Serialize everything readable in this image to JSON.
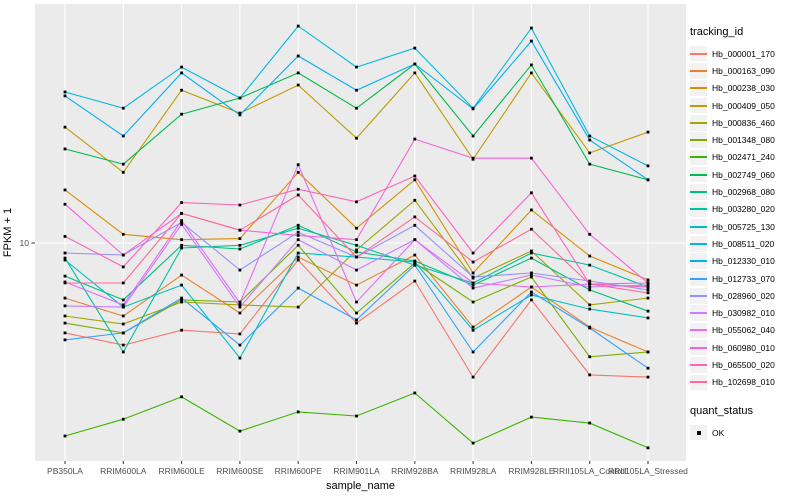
{
  "figure": {
    "legend_title": "tracking_id",
    "quant_legend_title": "quant_status",
    "quant_legend_items": [
      "OK"
    ]
  },
  "chart_data": {
    "type": "line",
    "title": "",
    "xlabel": "sample_name",
    "ylabel": "FPKM + 1",
    "x_type": "categorical",
    "y_scale": "log10",
    "y_tick_labels": [
      "10"
    ],
    "y_tick_values": [
      10
    ],
    "ylim": [
      1.45,
      80
    ],
    "grid": "major-only",
    "legend_position": "right",
    "panel_background": "#EBEBEB",
    "gridline_color": "#FFFFFF",
    "point_marker": {
      "shape": "square",
      "color": "#000000",
      "meaning": "quant_status OK"
    },
    "categories": [
      "PB350LA",
      "RRIM600LA",
      "RRIM600LE",
      "RRIM600SE",
      "RRIM600PE",
      "RRIM901LA",
      "RRIM928BA",
      "RRIM928LA",
      "RRIM928LE",
      "RRII105LA_Control",
      "RRII105LA_Stressed"
    ],
    "series": [
      {
        "name": "Hb_000001_170",
        "color": "#F8766D",
        "values": [
          4.51,
          4.05,
          4.62,
          4.47,
          8.6,
          4.92,
          7.14,
          3.05,
          6.04,
          3.11,
          3.05
        ]
      },
      {
        "name": "Hb_000163_090",
        "color": "#EA8331",
        "values": [
          6.14,
          5.24,
          7.53,
          5.38,
          8.83,
          6.89,
          8.99,
          4.75,
          6.77,
          4.75,
          3.81
        ]
      },
      {
        "name": "Hb_000238_030",
        "color": "#D89000",
        "values": [
          16.0,
          10.8,
          10.3,
          10.4,
          18.7,
          11.4,
          17.5,
          7.67,
          13.4,
          8.91,
          7.21
        ]
      },
      {
        "name": "Hb_000409_050",
        "color": "#C09B00",
        "values": [
          27.9,
          18.7,
          38.7,
          31.6,
          40.5,
          25.3,
          45.1,
          21.0,
          45.1,
          22.2,
          26.7
        ]
      },
      {
        "name": "Hb_000836_460",
        "color": "#A3A500",
        "values": [
          5.24,
          4.88,
          5.93,
          5.78,
          5.67,
          9.4,
          14.6,
          7.33,
          9.32,
          5.78,
          6.14
        ]
      },
      {
        "name": "Hb_001348_080",
        "color": "#7CAE00",
        "values": [
          4.92,
          4.51,
          6.04,
          5.93,
          9.8,
          5.38,
          8.38,
          5.93,
          7.4,
          3.65,
          3.81
        ]
      },
      {
        "name": "Hb_002471_240",
        "color": "#39B600",
        "values": [
          1.81,
          2.1,
          2.56,
          1.89,
          2.24,
          2.16,
          2.65,
          1.7,
          2.14,
          2.03,
          1.63
        ]
      },
      {
        "name": "Hb_002749_060",
        "color": "#00BB4E",
        "values": [
          23.0,
          20.1,
          31.3,
          36.1,
          45.1,
          33.0,
          48.8,
          25.8,
          48.4,
          20.1,
          17.5
        ]
      },
      {
        "name": "Hb_002968_080",
        "color": "#00BF7D",
        "values": [
          7.46,
          6.04,
          9.8,
          9.48,
          11.7,
          9.24,
          8.53,
          6.89,
          8.75,
          6.6,
          5.47
        ]
      },
      {
        "name": "Hb_003280_020",
        "color": "#00C1A3",
        "values": [
          8.75,
          3.81,
          9.57,
          9.8,
          11.4,
          9.8,
          8.22,
          7.02,
          9.15,
          8.22,
          6.77
        ]
      },
      {
        "name": "Hb_005725_130",
        "color": "#00BFC4",
        "values": [
          8.6,
          5.67,
          6.89,
          3.61,
          9.15,
          8.83,
          8.45,
          4.62,
          6.31,
          5.57,
          5.15
        ]
      },
      {
        "name": "Hb_008511_020",
        "color": "#00BAE0",
        "values": [
          38.1,
          33.0,
          47.5,
          36.1,
          68.3,
          47.5,
          56.2,
          33.0,
          67.1,
          25.8,
          19.8
        ]
      },
      {
        "name": "Hb_012330_010",
        "color": "#00B0F6",
        "values": [
          36.8,
          25.8,
          45.1,
          31.1,
          52.4,
          38.7,
          48.8,
          32.8,
          59.8,
          24.9,
          17.5
        ]
      },
      {
        "name": "Hb_012733_070",
        "color": "#35A2FF",
        "values": [
          4.24,
          4.51,
          6.14,
          4.05,
          6.71,
          5.06,
          8.22,
          3.81,
          6.48,
          4.71,
          3.3
        ]
      },
      {
        "name": "Hb_028960_020",
        "color": "#9590FF",
        "values": [
          9.15,
          8.99,
          12.0,
          7.87,
          11.0,
          8.83,
          11.7,
          7.4,
          7.67,
          7.14,
          6.6
        ]
      },
      {
        "name": "Hb_030982_010",
        "color": "#C77CFF",
        "values": [
          5.73,
          5.67,
          11.8,
          5.67,
          10.3,
          7.87,
          10.3,
          6.71,
          7.53,
          6.77,
          6.89
        ]
      },
      {
        "name": "Hb_055062_040",
        "color": "#E76BF3",
        "values": [
          7.08,
          5.78,
          12.2,
          5.88,
          20.0,
          5.93,
          10.3,
          7.02,
          6.77,
          6.95,
          7.02
        ]
      },
      {
        "name": "Hb_060980_010",
        "color": "#FA62DB",
        "values": [
          14.1,
          8.99,
          13.0,
          11.2,
          10.7,
          10.3,
          25.1,
          21.2,
          21.2,
          10.8,
          7.02
        ]
      },
      {
        "name": "Hb_065500_020",
        "color": "#FF62BC",
        "values": [
          10.6,
          8.09,
          14.3,
          14.0,
          16.1,
          14.4,
          18.1,
          9.15,
          15.6,
          6.95,
          6.77
        ]
      },
      {
        "name": "Hb_102698_010",
        "color": "#FF6A98",
        "values": [
          7.02,
          7.02,
          13.0,
          11.2,
          15.3,
          8.83,
          12.6,
          8.45,
          11.3,
          6.95,
          6.43
        ]
      }
    ]
  }
}
